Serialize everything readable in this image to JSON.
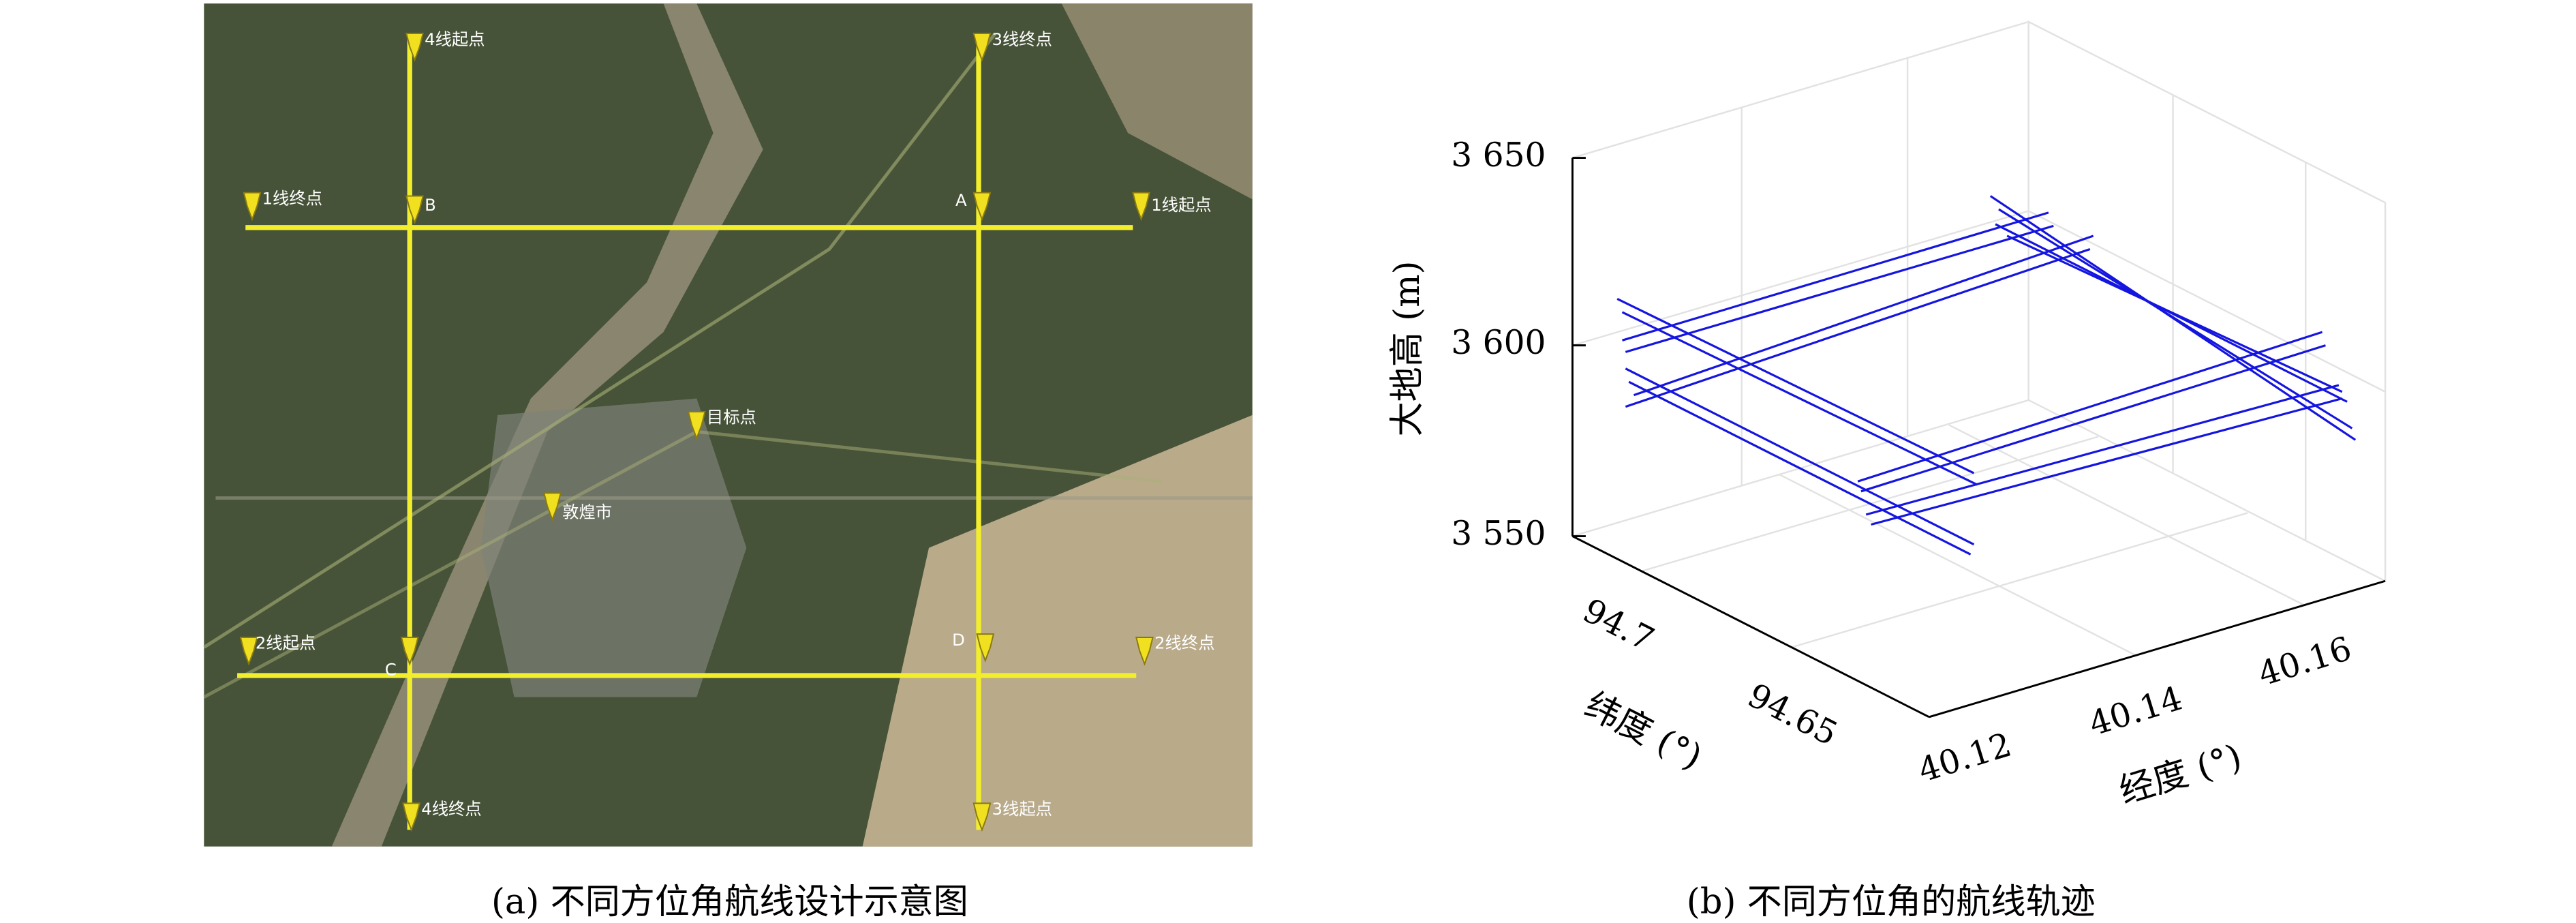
{
  "panel_a": {
    "caption": "(a) 不同方位角航线设计示意图",
    "labels": [
      "4线起点",
      "3线终点",
      "1线终点",
      "B",
      "A",
      "1线起点",
      "目标点",
      "敦煌市",
      "2线起点",
      "C",
      "D",
      "2线终点",
      "4线终点",
      "3线起点"
    ]
  },
  "panel_b": {
    "caption": "(b) 不同方位角的航线轨迹",
    "z_label": "大地高 (m)",
    "z_ticks": [
      "3 650",
      "3 600",
      "3 550"
    ],
    "lat_label": "纬度 (°)",
    "lat_ticks": [
      "94.7",
      "94.65"
    ],
    "lon_label": "经度 (°)",
    "lon_ticks": [
      "40.12",
      "40.14",
      "40.16"
    ]
  }
}
